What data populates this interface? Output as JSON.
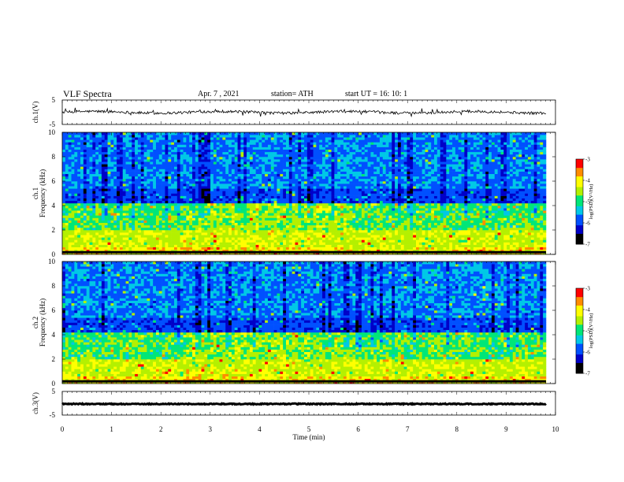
{
  "header": {
    "title": "VLF  Spectra",
    "date": "Apr. 7  , 2021",
    "station": "station= ATH",
    "start": "start  UT  =    16: 10: 1"
  },
  "chart_data": [
    {
      "type": "line",
      "name": "ch1-waveform",
      "ylabel": "ch.1(V)",
      "ylim": [
        -5,
        5
      ],
      "yticks": [
        "5",
        "-5"
      ],
      "xlim": [
        0,
        10
      ]
    },
    {
      "type": "heatmap",
      "name": "ch1-spectrogram",
      "ylabel_1": "ch.1",
      "ylabel_2": "Frequency  (kHz)",
      "ylim": [
        0,
        10
      ],
      "yticks": [
        "0",
        "2",
        "4",
        "6",
        "8",
        "10"
      ],
      "xlim": [
        0,
        10
      ],
      "colorbar": {
        "label": "log(PSD)(V²/Hz)",
        "range": [
          -7,
          -3
        ],
        "ticks": [
          "-3",
          "-4",
          "-5",
          "-6",
          "-7"
        ]
      }
    },
    {
      "type": "heatmap",
      "name": "ch2-spectrogram",
      "ylabel_1": "ch.2",
      "ylabel_2": "Frequency  (kHz)",
      "ylim": [
        0,
        10
      ],
      "yticks": [
        "0",
        "2",
        "4",
        "6",
        "8",
        "10"
      ],
      "xlim": [
        0,
        10
      ],
      "colorbar": {
        "label": "log(PSD)(V²/Hz)",
        "range": [
          -7,
          -3
        ],
        "ticks": [
          "-3",
          "-4",
          "-5",
          "-6",
          "-7"
        ]
      }
    },
    {
      "type": "line",
      "name": "ch3-waveform",
      "ylabel": "ch.3(V)",
      "ylim": [
        -5,
        5
      ],
      "yticks": [
        "5",
        "-5"
      ],
      "xlim": [
        0,
        10
      ]
    }
  ],
  "xaxis": {
    "label": "Time  (min)",
    "ticks": [
      "0",
      "1",
      "2",
      "3",
      "4",
      "5",
      "6",
      "7",
      "8",
      "9",
      "10"
    ]
  },
  "colors": {
    "frame": "#000000",
    "colormap": [
      "#000000",
      "#0000c8",
      "#0050ff",
      "#00c8e6",
      "#00e678",
      "#b4f000",
      "#ffff00",
      "#ff8c00",
      "#ff0000",
      "#ffffff"
    ]
  }
}
